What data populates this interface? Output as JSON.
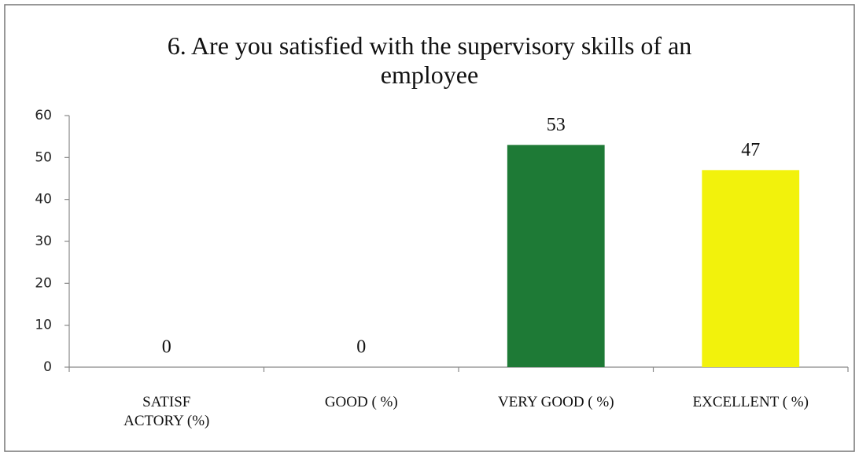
{
  "chart_data": {
    "type": "bar",
    "title": "6. Are you satisfied with the supervisory skills of an\nemployee",
    "categories": [
      "SATISF\nACTORY (%)",
      "GOOD ( %)",
      "VERY GOOD ( %)",
      "EXCELLENT ( %)"
    ],
    "values": [
      0,
      0,
      53,
      47
    ],
    "colors": [
      "#4472c4",
      "#c0504d",
      "#1e7a36",
      "#f2f20c"
    ],
    "ylim": [
      0,
      60
    ],
    "yticks": [
      0,
      10,
      20,
      30,
      40,
      50,
      60
    ],
    "grid": false
  }
}
